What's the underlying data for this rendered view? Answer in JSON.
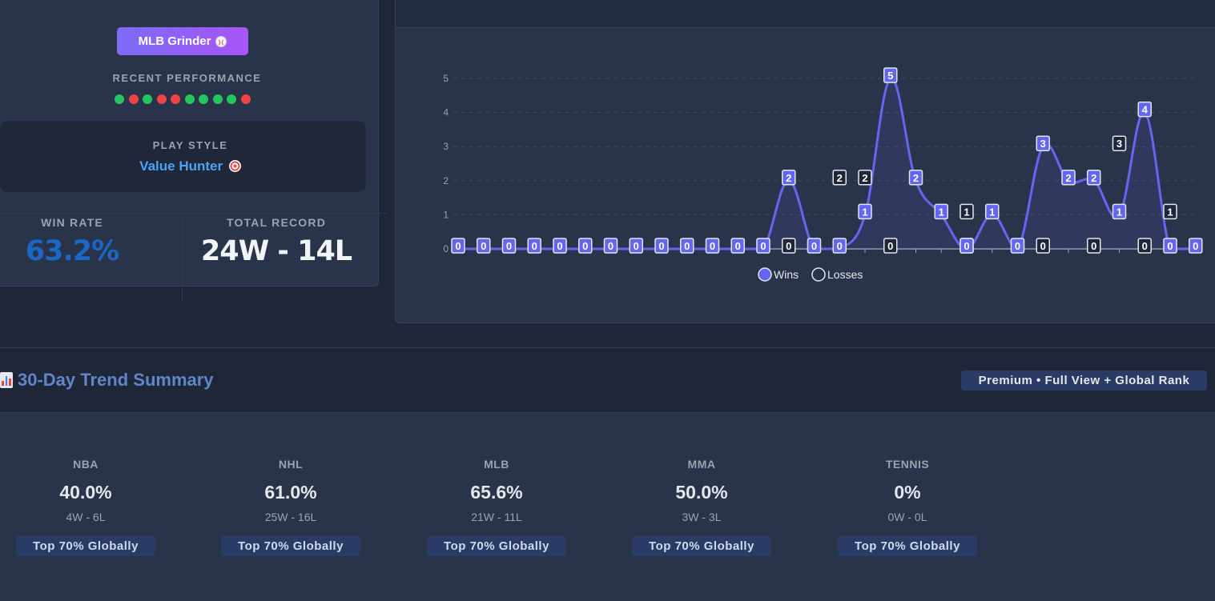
{
  "profile": {
    "badge": "MLB Grinder",
    "badge_icon": "baseball-icon",
    "recent_label": "RECENT PERFORMANCE",
    "recent_results": [
      "W",
      "L",
      "W",
      "L",
      "L",
      "W",
      "W",
      "W",
      "W",
      "L"
    ],
    "colors": {
      "win": "#22c55e",
      "loss": "#ef4444"
    },
    "play_style_label": "PLAY STYLE",
    "play_style_value": "Value Hunter",
    "play_style_icon": "target-icon",
    "win_rate_label": "WIN RATE",
    "win_rate_value": "63.2%",
    "win_rate_color": "#1c66c4",
    "total_record_label": "TOTAL RECORD",
    "total_record_value": "24W - 14L"
  },
  "chart_data": {
    "type": "line",
    "y_ticks": [
      "0",
      "1",
      "2",
      "3",
      "4",
      "5"
    ],
    "ylim": [
      0,
      5
    ],
    "grid": "dashed horizontal",
    "legend_position": "bottom-center",
    "series": [
      {
        "name": "Wins",
        "color": "#6366f1",
        "values": [
          0,
          0,
          0,
          0,
          0,
          0,
          0,
          0,
          0,
          0,
          0,
          0,
          0,
          2,
          0,
          0,
          1,
          5,
          2,
          1,
          0,
          1,
          0,
          3,
          2,
          2,
          1,
          4,
          0,
          0
        ]
      },
      {
        "name": "Losses",
        "color": "#e5e7eb",
        "points": [
          [
            13,
            0
          ],
          [
            15,
            2
          ],
          [
            16,
            2
          ],
          [
            17,
            0
          ],
          [
            20,
            1
          ],
          [
            20,
            0
          ],
          [
            23,
            0
          ],
          [
            25,
            0
          ],
          [
            26,
            3
          ],
          [
            27,
            0
          ],
          [
            28,
            1
          ]
        ]
      }
    ]
  },
  "section": {
    "title": "30-Day Trend Summary",
    "title_icon": "bar-chart-icon",
    "premium_label": "Premium • Full View + Global Rank"
  },
  "sports": [
    {
      "name": "NBA",
      "pct": "40.0%",
      "record": "4W - 6L",
      "rank": "Top 70% Globally"
    },
    {
      "name": "NHL",
      "pct": "61.0%",
      "record": "25W - 16L",
      "rank": "Top 70% Globally"
    },
    {
      "name": "MLB",
      "pct": "65.6%",
      "record": "21W - 11L",
      "rank": "Top 70% Globally"
    },
    {
      "name": "MMA",
      "pct": "50.0%",
      "record": "3W - 3L",
      "rank": "Top 70% Globally"
    },
    {
      "name": "TENNIS",
      "pct": "0%",
      "record": "0W - 0L",
      "rank": "Top 70% Globally"
    }
  ]
}
